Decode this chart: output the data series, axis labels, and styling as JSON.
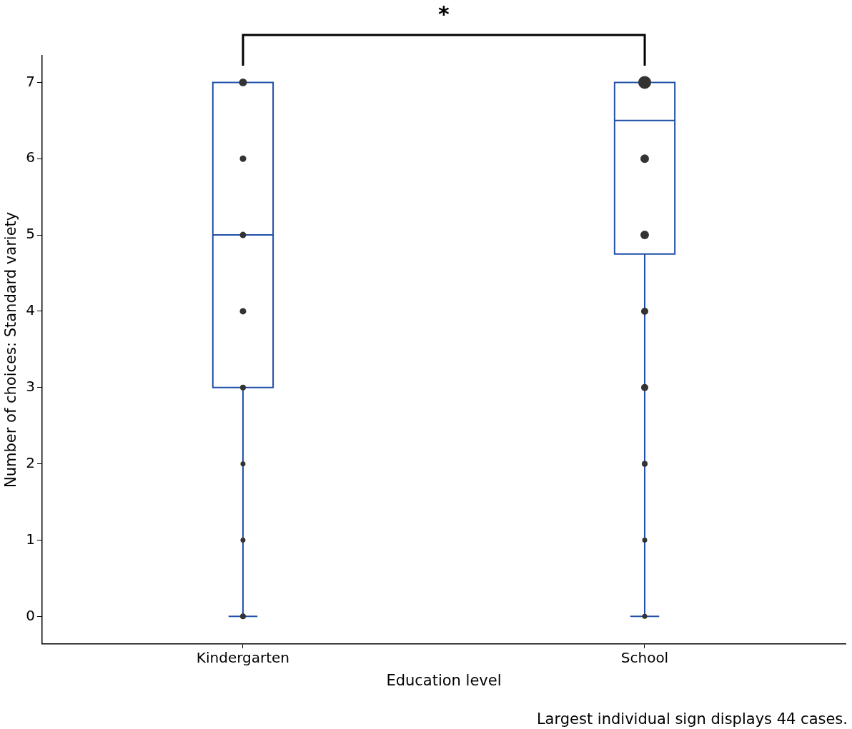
{
  "chart_data": {
    "type": "box",
    "xlabel": "Education level",
    "ylabel": "Number of choices: Standard variety",
    "categories": [
      "Kindergarten",
      "School"
    ],
    "ylim": [
      -0.36,
      7.35
    ],
    "yticks": [
      0,
      1,
      2,
      3,
      4,
      5,
      6,
      7
    ],
    "grid": false,
    "legend": false,
    "series": [
      {
        "color": "#1f4fa8",
        "boxes": [
          {
            "low": 0,
            "q1": 3,
            "median": 5,
            "q3": 7,
            "high": 7
          },
          {
            "low": 0,
            "q1": 4.75,
            "median": 6.5,
            "q3": 7,
            "high": 7
          }
        ]
      },
      {
        "type": "bubble",
        "color": "#333333",
        "x": [
          "Kindergarten",
          "Kindergarten",
          "Kindergarten",
          "Kindergarten",
          "Kindergarten",
          "Kindergarten",
          "Kindergarten",
          "Kindergarten",
          "School",
          "School",
          "School",
          "School",
          "School",
          "School",
          "School",
          "School"
        ],
        "values": [
          7,
          6,
          5,
          4,
          3,
          2,
          1,
          0,
          7,
          6,
          5,
          4,
          3,
          2,
          1,
          0
        ],
        "sizes": [
          0.37,
          0.25,
          0.25,
          0.25,
          0.2,
          0.15,
          0.15,
          0.2,
          1,
          0.44,
          0.44,
          0.31,
          0.31,
          0.2,
          0.15,
          0.15
        ]
      }
    ],
    "annotations": [
      "*",
      "Largest individual sign displays 44 cases."
    ]
  }
}
